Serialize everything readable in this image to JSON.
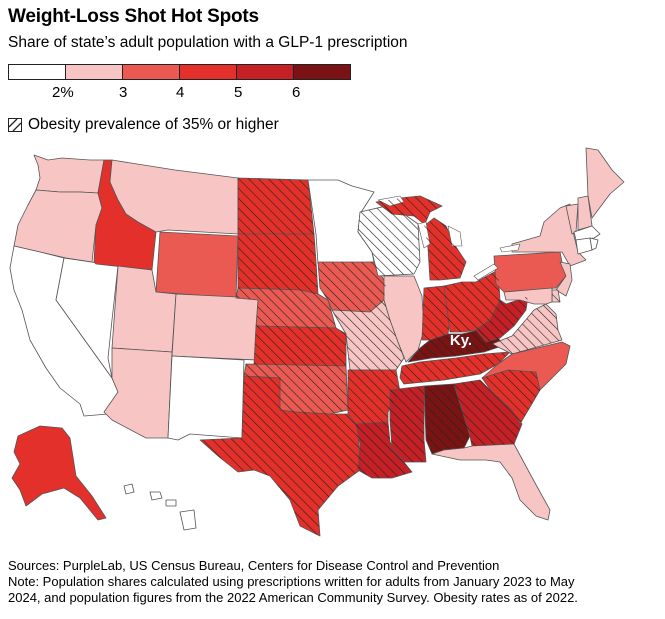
{
  "title": "Weight-Loss Shot Hot Spots",
  "subtitle": "Share of state’s adult population with a GLP-1 prescription",
  "legend": {
    "colors": [
      "#ffffff",
      "#f7c6c4",
      "#ea5a52",
      "#e4302a",
      "#c42026",
      "#7a1414"
    ],
    "tick_labels": [
      "2%",
      "3",
      "4",
      "5",
      "6"
    ]
  },
  "hatch_legend": "Obesity prevalence of 35% or higher",
  "map_label": "Ky.",
  "sources": "Sources: PurpleLab, US Census Bureau, Centers for Disease Control and Prevention",
  "note_line1": "Note: Population shares calculated using prescriptions written for adults from January 2023 to May",
  "note_line2": "2024, and population figures from the 2022 American Community Survey. Obesity rates as of 2022.",
  "states": [
    {
      "name": "WA",
      "cls": 1,
      "obese": false
    },
    {
      "name": "OR",
      "cls": 1,
      "obese": false
    },
    {
      "name": "CA",
      "cls": 0,
      "obese": false
    },
    {
      "name": "NV",
      "cls": 0,
      "obese": false
    },
    {
      "name": "ID",
      "cls": 3,
      "obese": false
    },
    {
      "name": "MT",
      "cls": 1,
      "obese": false
    },
    {
      "name": "WY",
      "cls": 2,
      "obese": false
    },
    {
      "name": "UT",
      "cls": 1,
      "obese": false
    },
    {
      "name": "CO",
      "cls": 1,
      "obese": false
    },
    {
      "name": "AZ",
      "cls": 1,
      "obese": false
    },
    {
      "name": "NM",
      "cls": 0,
      "obese": false
    },
    {
      "name": "ND",
      "cls": 3,
      "obese": true
    },
    {
      "name": "SD",
      "cls": 3,
      "obese": true
    },
    {
      "name": "NE",
      "cls": 2,
      "obese": true
    },
    {
      "name": "KS",
      "cls": 3,
      "obese": true
    },
    {
      "name": "OK",
      "cls": 2,
      "obese": true
    },
    {
      "name": "TX",
      "cls": 3,
      "obese": true
    },
    {
      "name": "MN",
      "cls": 0,
      "obese": false
    },
    {
      "name": "IA",
      "cls": 2,
      "obese": true
    },
    {
      "name": "MO",
      "cls": 1,
      "obese": true
    },
    {
      "name": "AR",
      "cls": 3,
      "obese": true
    },
    {
      "name": "LA",
      "cls": 4,
      "obese": true
    },
    {
      "name": "WI",
      "cls": 0,
      "obese": true
    },
    {
      "name": "IL",
      "cls": 1,
      "obese": false
    },
    {
      "name": "MI",
      "cls": 3,
      "obese": true
    },
    {
      "name": "IN",
      "cls": 3,
      "obese": true
    },
    {
      "name": "OH",
      "cls": 3,
      "obese": true
    },
    {
      "name": "KY",
      "cls": 5,
      "obese": true
    },
    {
      "name": "TN",
      "cls": 3,
      "obese": true
    },
    {
      "name": "MS",
      "cls": 4,
      "obese": true
    },
    {
      "name": "AL",
      "cls": 5,
      "obese": true
    },
    {
      "name": "GA",
      "cls": 4,
      "obese": true
    },
    {
      "name": "FL",
      "cls": 1,
      "obese": false
    },
    {
      "name": "SC",
      "cls": 3,
      "obese": true
    },
    {
      "name": "NC",
      "cls": 2,
      "obese": false
    },
    {
      "name": "VA",
      "cls": 1,
      "obese": true
    },
    {
      "name": "WV",
      "cls": 4,
      "obese": true
    },
    {
      "name": "PA",
      "cls": 2,
      "obese": false
    },
    {
      "name": "NY",
      "cls": 1,
      "obese": false
    },
    {
      "name": "NJ",
      "cls": 1,
      "obese": false
    },
    {
      "name": "DE",
      "cls": 1,
      "obese": true
    },
    {
      "name": "MD",
      "cls": 1,
      "obese": false
    },
    {
      "name": "VT",
      "cls": 1,
      "obese": false
    },
    {
      "name": "NH",
      "cls": 1,
      "obese": false
    },
    {
      "name": "ME",
      "cls": 1,
      "obese": false
    },
    {
      "name": "MA",
      "cls": 0,
      "obese": false
    },
    {
      "name": "CT",
      "cls": 0,
      "obese": false
    },
    {
      "name": "RI",
      "cls": 0,
      "obese": false
    },
    {
      "name": "AK",
      "cls": 3,
      "obese": false
    },
    {
      "name": "HI",
      "cls": 0,
      "obese": false
    }
  ]
}
